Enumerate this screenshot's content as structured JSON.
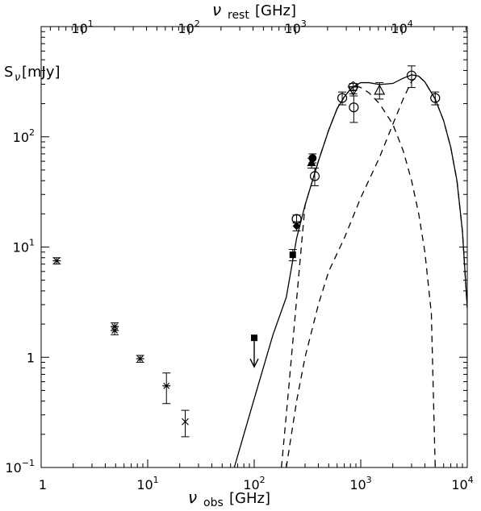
{
  "chart_data": {
    "type": "scatter",
    "x_scale": "log",
    "y_scale": "log",
    "xlim": [
      1,
      10000
    ],
    "ylim": [
      0.1,
      1000
    ],
    "top_xlim": [
      4.1,
      41000
    ],
    "grid": false,
    "xlabel": {
      "main": "ν",
      "sub": "obs",
      "unit": "[GHz]"
    },
    "ylabel": {
      "main": "S",
      "sub": "ν",
      "unit": "[mJy]"
    },
    "top_xlabel": {
      "main": "ν",
      "sub": "rest",
      "unit": "[GHz]"
    },
    "bottom_ticks": [
      {
        "value": 1,
        "label": "1"
      },
      {
        "value": 10,
        "base": "10",
        "exp": "1"
      },
      {
        "value": 100,
        "base": "10",
        "exp": "2"
      },
      {
        "value": 1000,
        "base": "10",
        "exp": "3"
      },
      {
        "value": 10000,
        "base": "10",
        "exp": "4"
      }
    ],
    "left_ticks": [
      {
        "value": 0.1,
        "base": "10",
        "exp": "−1"
      },
      {
        "value": 1,
        "label": "1"
      },
      {
        "value": 10,
        "base": "10",
        "exp": "1"
      },
      {
        "value": 100,
        "base": "10",
        "exp": "2"
      }
    ],
    "top_ticks": [
      {
        "value": 10,
        "base": "10",
        "exp": "1"
      },
      {
        "value": 100,
        "base": "10",
        "exp": "2"
      },
      {
        "value": 1000,
        "base": "10",
        "exp": "3"
      },
      {
        "value": 10000,
        "base": "10",
        "exp": "4"
      }
    ],
    "points": [
      {
        "x": 1.4,
        "y": 7.5,
        "lo": 7.0,
        "hi": 8.0,
        "marker": "asterisk"
      },
      {
        "x": 4.9,
        "y": 1.9,
        "lo": 1.75,
        "hi": 2.05,
        "marker": "asterisk"
      },
      {
        "x": 4.9,
        "y": 1.75,
        "lo": 1.6,
        "hi": 1.9,
        "marker": "asterisk"
      },
      {
        "x": 8.5,
        "y": 0.97,
        "lo": 0.9,
        "hi": 1.04,
        "marker": "asterisk"
      },
      {
        "x": 15,
        "y": 0.55,
        "lo": 0.38,
        "hi": 0.72,
        "marker": "asterisk"
      },
      {
        "x": 22.5,
        "y": 0.26,
        "lo": 0.19,
        "hi": 0.33,
        "marker": "cross"
      },
      {
        "x": 230,
        "y": 8.5,
        "lo": 7.5,
        "hi": 9.5,
        "marker": "filled-square"
      },
      {
        "x": 250,
        "y": 15.5,
        "lo": 14.0,
        "hi": 17.0,
        "marker": "filled-diamond"
      },
      {
        "x": 250,
        "y": 18,
        "lo": 16.5,
        "hi": 19.5,
        "marker": "open-circle"
      },
      {
        "x": 345,
        "y": 58,
        "lo": 52,
        "hi": 64,
        "marker": "filled-triangle"
      },
      {
        "x": 353,
        "y": 64,
        "lo": 58,
        "hi": 70,
        "marker": "filled-circle"
      },
      {
        "x": 370,
        "y": 44,
        "lo": 36,
        "hi": 52,
        "marker": "open-circle"
      },
      {
        "x": 670,
        "y": 225,
        "lo": 195,
        "hi": 255,
        "marker": "open-circle"
      },
      {
        "x": 850,
        "y": 285,
        "lo": 265,
        "hi": 305,
        "marker": "open-pentagon"
      },
      {
        "x": 850,
        "y": 265,
        "lo": 245,
        "hi": 285,
        "marker": "open-triangle-down"
      },
      {
        "x": 860,
        "y": 185,
        "lo": 135,
        "hi": 235,
        "marker": "open-circle"
      },
      {
        "x": 1500,
        "y": 265,
        "lo": 220,
        "hi": 310,
        "marker": "open-triangle"
      },
      {
        "x": 3000,
        "y": 360,
        "lo": 280,
        "hi": 440,
        "marker": "open-circle"
      },
      {
        "x": 5000,
        "y": 225,
        "lo": 195,
        "hi": 255,
        "marker": "open-circle"
      }
    ],
    "upper_limits": [
      {
        "x": 100,
        "y": 1.5,
        "marker": "filled-square"
      }
    ],
    "curves": [
      {
        "style": "solid",
        "points": [
          [
            65,
            0.1
          ],
          [
            80,
            0.2
          ],
          [
            100,
            0.42
          ],
          [
            150,
            1.6
          ],
          [
            200,
            3.5
          ],
          [
            250,
            12
          ],
          [
            300,
            24
          ],
          [
            400,
            60
          ],
          [
            500,
            115
          ],
          [
            600,
            180
          ],
          [
            700,
            230
          ],
          [
            800,
            270
          ],
          [
            900,
            295
          ],
          [
            1000,
            310
          ],
          [
            1200,
            310
          ],
          [
            1500,
            298
          ],
          [
            2000,
            305
          ],
          [
            2500,
            340
          ],
          [
            3000,
            365
          ],
          [
            3500,
            355
          ],
          [
            4000,
            315
          ],
          [
            5000,
            220
          ],
          [
            6000,
            140
          ],
          [
            7000,
            80
          ],
          [
            8000,
            40
          ],
          [
            9000,
            14
          ],
          [
            10000,
            2.8
          ]
        ]
      },
      {
        "style": "dashed",
        "points": [
          [
            180,
            0.1
          ],
          [
            200,
            0.3
          ],
          [
            300,
            24
          ],
          [
            400,
            60
          ],
          [
            500,
            115
          ],
          [
            600,
            180
          ],
          [
            700,
            230
          ],
          [
            800,
            270
          ],
          [
            900,
            290
          ],
          [
            1000,
            280
          ],
          [
            1200,
            250
          ],
          [
            1500,
            200
          ],
          [
            2000,
            130
          ],
          [
            2500,
            75
          ],
          [
            3000,
            40
          ],
          [
            3500,
            20
          ],
          [
            4000,
            9
          ],
          [
            4600,
            2.5
          ],
          [
            5000,
            0.1
          ]
        ]
      },
      {
        "style": "dashed",
        "points": [
          [
            200,
            0.1
          ],
          [
            250,
            0.4
          ],
          [
            300,
            1.0
          ],
          [
            400,
            3.0
          ],
          [
            500,
            6.0
          ],
          [
            700,
            12
          ],
          [
            1000,
            28
          ],
          [
            1500,
            65
          ],
          [
            2000,
            130
          ],
          [
            2500,
            220
          ],
          [
            3000,
            320
          ],
          [
            3500,
            355
          ],
          [
            4000,
            315
          ],
          [
            5000,
            220
          ],
          [
            6000,
            140
          ],
          [
            7000,
            80
          ],
          [
            8000,
            40
          ],
          [
            9000,
            14
          ],
          [
            10000,
            2.8
          ]
        ]
      }
    ]
  }
}
